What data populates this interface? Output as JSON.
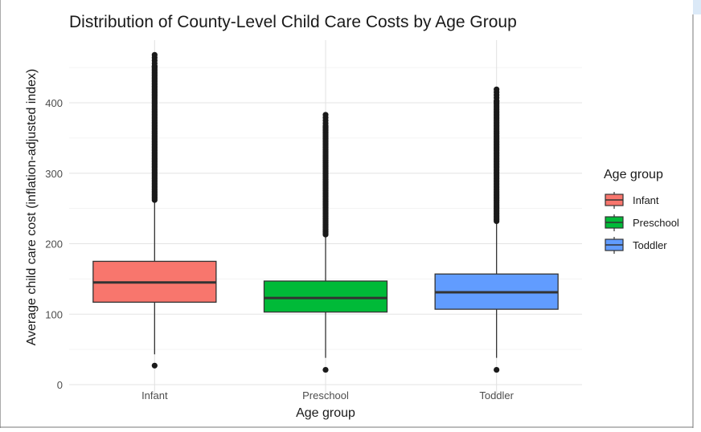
{
  "chart_data": {
    "type": "box",
    "title": "Distribution of County-Level Child Care Costs by Age Group",
    "xlabel": "Age group",
    "ylabel": "Average child care cost (inflation-adjusted index)",
    "ylim": [
      0,
      470
    ],
    "yticks": [
      0,
      100,
      200,
      300,
      400
    ],
    "grid": true,
    "legend": {
      "title": "Age group",
      "position": "right"
    },
    "categories": [
      "Infant",
      "Preschool",
      "Toddler"
    ],
    "series": [
      {
        "name": "Infant",
        "color": "#F8766D",
        "whisker_low": 43,
        "q1": 117,
        "median": 145,
        "q3": 175,
        "whisker_high": 262,
        "outliers_low": [
          27
        ],
        "outliers_high_range": [
          262,
          470
        ]
      },
      {
        "name": "Preschool",
        "color": "#00BA38",
        "whisker_low": 38,
        "q1": 103,
        "median": 123,
        "q3": 147,
        "whisker_high": 213,
        "outliers_low": [
          21
        ],
        "outliers_high_range": [
          213,
          385
        ]
      },
      {
        "name": "Toddler",
        "color": "#619CFF",
        "whisker_low": 38,
        "q1": 107,
        "median": 131,
        "q3": 157,
        "whisker_high": 232,
        "outliers_low": [
          21
        ],
        "outliers_high_range": [
          232,
          421
        ]
      }
    ]
  }
}
